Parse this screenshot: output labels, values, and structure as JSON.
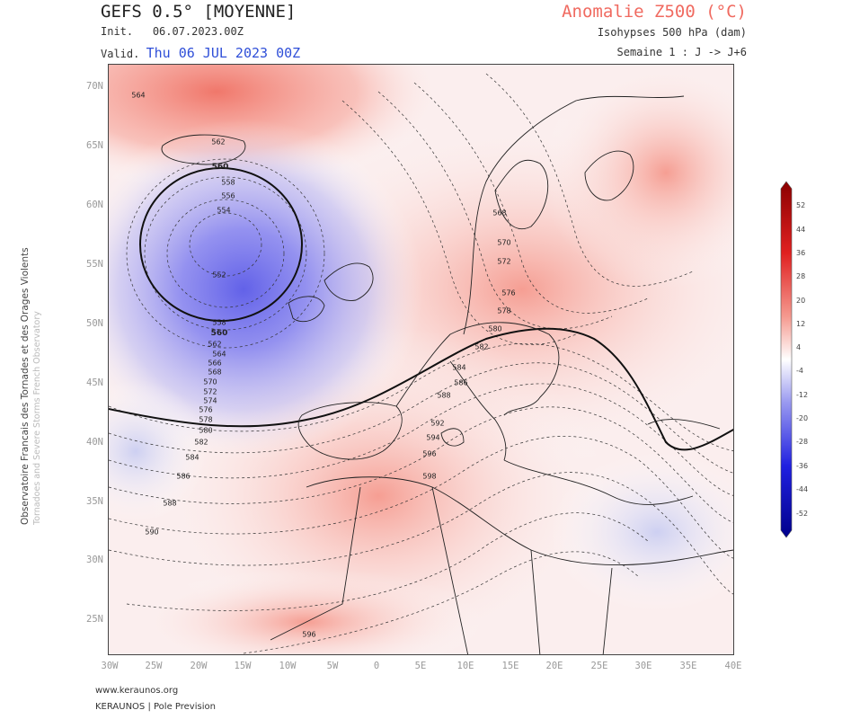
{
  "header": {
    "model_title": "GEFS 0.5° [MOYENNE]",
    "init_label": "Init.",
    "init_value": "06.07.2023.00Z",
    "valid_label": "Valid.",
    "valid_value": "Thu 06 JUL 2023 00Z",
    "product_title": "Anomalie Z500 (°C)",
    "isohypses_label": "Isohypses 500 hPa (dam)",
    "week_label": "Semaine 1 : J -> J+6"
  },
  "side_label": {
    "line1": "Observatoire Francais des Tornades et des Orages Violents",
    "line2": "Tornadoes and Severe Storms French Observatory"
  },
  "map": {
    "lat_labels": [
      "70N",
      "65N",
      "60N",
      "55N",
      "50N",
      "45N",
      "40N",
      "35N",
      "30N",
      "25N"
    ],
    "lon_labels": [
      "30W",
      "25W",
      "20W",
      "15W",
      "10W",
      "5W",
      "0",
      "5E",
      "10E",
      "15E",
      "20E",
      "25E",
      "30E",
      "35E",
      "40E"
    ],
    "contour_labels": [
      "564",
      "562",
      "560",
      "558",
      "556",
      "554",
      "552",
      "558",
      "560",
      "562",
      "564",
      "566",
      "568",
      "570",
      "572",
      "574",
      "576",
      "578",
      "580",
      "582",
      "584",
      "586",
      "588",
      "590",
      "596",
      "568",
      "570",
      "572",
      "576",
      "578",
      "580",
      "582",
      "584",
      "586",
      "588",
      "592",
      "594",
      "596",
      "598"
    ]
  },
  "colorbar": {
    "ticks": [
      "52",
      "44",
      "36",
      "28",
      "20",
      "12",
      "4",
      "-4",
      "-12",
      "-20",
      "-28",
      "-36",
      "-44",
      "-52"
    ],
    "colors": {
      "max": "#8b0000",
      "warm": "#e84a3a",
      "neutral": "#ffffff",
      "cool": "#5a5ae8",
      "min": "#00008b"
    }
  },
  "footer": {
    "url": "www.keraunos.org",
    "org": "KERAUNOS | Pole Prevision"
  }
}
